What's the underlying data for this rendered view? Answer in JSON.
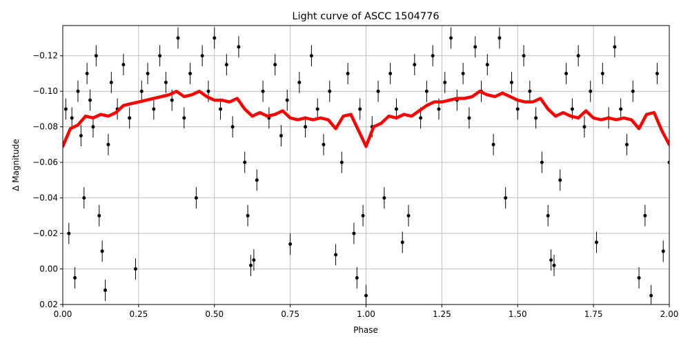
{
  "chart_data": {
    "type": "scatter",
    "title": "Light curve of ASCC 1504776",
    "x_label": "Phase",
    "y_label": "Δ Magnitude",
    "xlim": [
      0,
      2
    ],
    "ylim": [
      0.02,
      -0.137
    ],
    "xticks": [
      {
        "value": 0,
        "label": "0.00"
      },
      {
        "value": 0.25,
        "label": "0.25"
      },
      {
        "value": 0.5,
        "label": "0.50"
      },
      {
        "value": 0.75,
        "label": "0.75"
      },
      {
        "value": 1,
        "label": "1.00"
      },
      {
        "value": 1.25,
        "label": "1.25"
      },
      {
        "value": 1.5,
        "label": "1.50"
      },
      {
        "value": 1.75,
        "label": "1.75"
      },
      {
        "value": 2,
        "label": "2.00"
      }
    ],
    "yticks": [
      {
        "value": -0.12,
        "label": "−0.12"
      },
      {
        "value": -0.1,
        "label": "−0.10"
      },
      {
        "value": -0.08,
        "label": "−0.08"
      },
      {
        "value": -0.06,
        "label": "−0.06"
      },
      {
        "value": -0.04,
        "label": "−0.04"
      },
      {
        "value": -0.02,
        "label": "−0.02"
      },
      {
        "value": 0,
        "label": "0.00"
      },
      {
        "value": 0.02,
        "label": "0.02"
      }
    ],
    "grid": true,
    "yerr": 0.006,
    "series": [
      {
        "style": "points",
        "color": "#000000",
        "x": [
          0.01,
          0.02,
          0.03,
          0.04,
          0.05,
          0.06,
          0.07,
          0.08,
          0.09,
          0.1,
          0.11,
          0.12,
          0.13,
          0.14,
          0.15,
          0.16,
          0.18,
          0.2,
          0.22,
          0.24,
          0.26,
          0.28,
          0.3,
          0.32,
          0.34,
          0.36,
          0.38,
          0.4,
          0.42,
          0.44,
          0.46,
          0.48,
          0.5,
          0.52,
          0.54,
          0.56,
          0.58,
          0.6,
          0.61,
          0.62,
          0.63,
          0.64,
          0.66,
          0.68,
          0.7,
          0.72,
          0.74,
          0.75,
          0.78,
          0.8,
          0.82,
          0.84,
          0.86,
          0.88,
          0.9,
          0.92,
          0.94,
          0.96,
          0.97,
          0.98,
          0.99,
          1.0,
          1.02,
          1.04,
          1.06,
          1.08,
          1.1,
          1.12,
          1.14,
          1.16,
          1.18,
          1.2,
          1.22,
          1.24,
          1.26,
          1.28,
          1.3,
          1.32,
          1.34,
          1.36,
          1.38,
          1.4,
          1.42,
          1.44,
          1.46,
          1.48,
          1.5,
          1.52,
          1.54,
          1.56,
          1.58,
          1.6,
          1.61,
          1.62,
          1.64,
          1.66,
          1.68,
          1.7,
          1.72,
          1.74,
          1.76,
          1.78,
          1.8,
          1.82,
          1.84,
          1.86,
          1.88,
          1.9,
          1.92,
          1.94,
          1.96,
          1.98,
          2.0
        ],
        "values": [
          -0.09,
          -0.02,
          -0.085,
          0.005,
          -0.1,
          -0.075,
          -0.04,
          -0.11,
          -0.095,
          -0.08,
          -0.12,
          -0.03,
          -0.01,
          0.012,
          -0.07,
          -0.105,
          -0.09,
          -0.115,
          -0.085,
          0.0,
          -0.1,
          -0.11,
          -0.09,
          -0.12,
          -0.105,
          -0.095,
          -0.13,
          -0.085,
          -0.11,
          -0.04,
          -0.12,
          -0.1,
          -0.13,
          -0.09,
          -0.115,
          -0.08,
          -0.125,
          -0.06,
          -0.03,
          -0.002,
          -0.005,
          -0.05,
          -0.1,
          -0.085,
          -0.115,
          -0.075,
          -0.095,
          -0.014,
          -0.105,
          -0.08,
          -0.12,
          -0.09,
          -0.07,
          -0.1,
          -0.008,
          -0.06,
          -0.11,
          -0.02,
          0.005,
          -0.09,
          -0.03,
          0.015,
          -0.08,
          -0.1,
          -0.04,
          -0.11,
          -0.09,
          -0.015,
          -0.03,
          -0.115,
          -0.085,
          -0.1,
          -0.12,
          -0.09,
          -0.105,
          -0.13,
          -0.095,
          -0.11,
          -0.085,
          -0.125,
          -0.1,
          -0.115,
          -0.07,
          -0.13,
          -0.04,
          -0.105,
          -0.09,
          -0.12,
          -0.1,
          -0.085,
          -0.06,
          -0.03,
          -0.005,
          -0.002,
          -0.05,
          -0.11,
          -0.09,
          -0.12,
          -0.08,
          -0.1,
          -0.015,
          -0.11,
          -0.085,
          -0.125,
          -0.09,
          -0.07,
          -0.1,
          0.005,
          -0.03,
          0.015,
          -0.11,
          -0.01,
          -0.06
        ]
      },
      {
        "style": "line",
        "color": "#ff0000",
        "x": [
          0,
          0.025,
          0.05,
          0.075,
          0.1,
          0.125,
          0.15,
          0.175,
          0.2,
          0.225,
          0.25,
          0.275,
          0.3,
          0.325,
          0.35,
          0.375,
          0.4,
          0.425,
          0.45,
          0.475,
          0.5,
          0.525,
          0.55,
          0.575,
          0.6,
          0.625,
          0.65,
          0.675,
          0.7,
          0.725,
          0.75,
          0.775,
          0.8,
          0.825,
          0.85,
          0.875,
          0.9,
          0.925,
          0.95,
          0.975,
          1.0,
          1.025,
          1.05,
          1.075,
          1.1,
          1.125,
          1.15,
          1.175,
          1.2,
          1.225,
          1.25,
          1.275,
          1.3,
          1.325,
          1.35,
          1.375,
          1.4,
          1.425,
          1.45,
          1.475,
          1.5,
          1.525,
          1.55,
          1.575,
          1.6,
          1.625,
          1.65,
          1.675,
          1.7,
          1.725,
          1.75,
          1.775,
          1.8,
          1.825,
          1.85,
          1.875,
          1.9,
          1.925,
          1.95,
          1.975,
          2.0
        ],
        "values": [
          -0.069,
          -0.079,
          -0.081,
          -0.086,
          -0.085,
          -0.087,
          -0.086,
          -0.088,
          -0.092,
          -0.093,
          -0.094,
          -0.095,
          -0.096,
          -0.097,
          -0.098,
          -0.1,
          -0.097,
          -0.098,
          -0.1,
          -0.097,
          -0.095,
          -0.095,
          -0.094,
          -0.096,
          -0.09,
          -0.086,
          -0.088,
          -0.086,
          -0.087,
          -0.089,
          -0.085,
          -0.084,
          -0.085,
          -0.084,
          -0.085,
          -0.084,
          -0.079,
          -0.086,
          -0.087,
          -0.078,
          -0.069,
          -0.08,
          -0.082,
          -0.086,
          -0.085,
          -0.087,
          -0.086,
          -0.089,
          -0.092,
          -0.094,
          -0.094,
          -0.095,
          -0.096,
          -0.096,
          -0.097,
          -0.1,
          -0.098,
          -0.097,
          -0.099,
          -0.097,
          -0.095,
          -0.094,
          -0.094,
          -0.096,
          -0.09,
          -0.086,
          -0.088,
          -0.086,
          -0.085,
          -0.089,
          -0.085,
          -0.084,
          -0.085,
          -0.084,
          -0.085,
          -0.084,
          -0.079,
          -0.087,
          -0.088,
          -0.078,
          -0.07
        ]
      }
    ]
  }
}
